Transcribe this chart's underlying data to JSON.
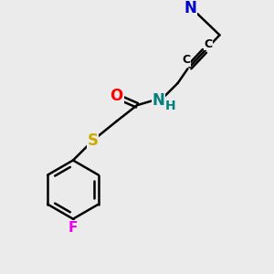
{
  "bg": "#ebebeb",
  "figsize": [
    3.0,
    3.0
  ],
  "dpi": 100,
  "bond_color": "#000000",
  "bond_lw": 1.8,
  "atom_colors": {
    "F": "#ee00ee",
    "S": "#ccaa00",
    "O": "#ff0000",
    "N_amide": "#008080",
    "H": "#008080",
    "N_amine": "#0000cc",
    "C": "#000000"
  }
}
